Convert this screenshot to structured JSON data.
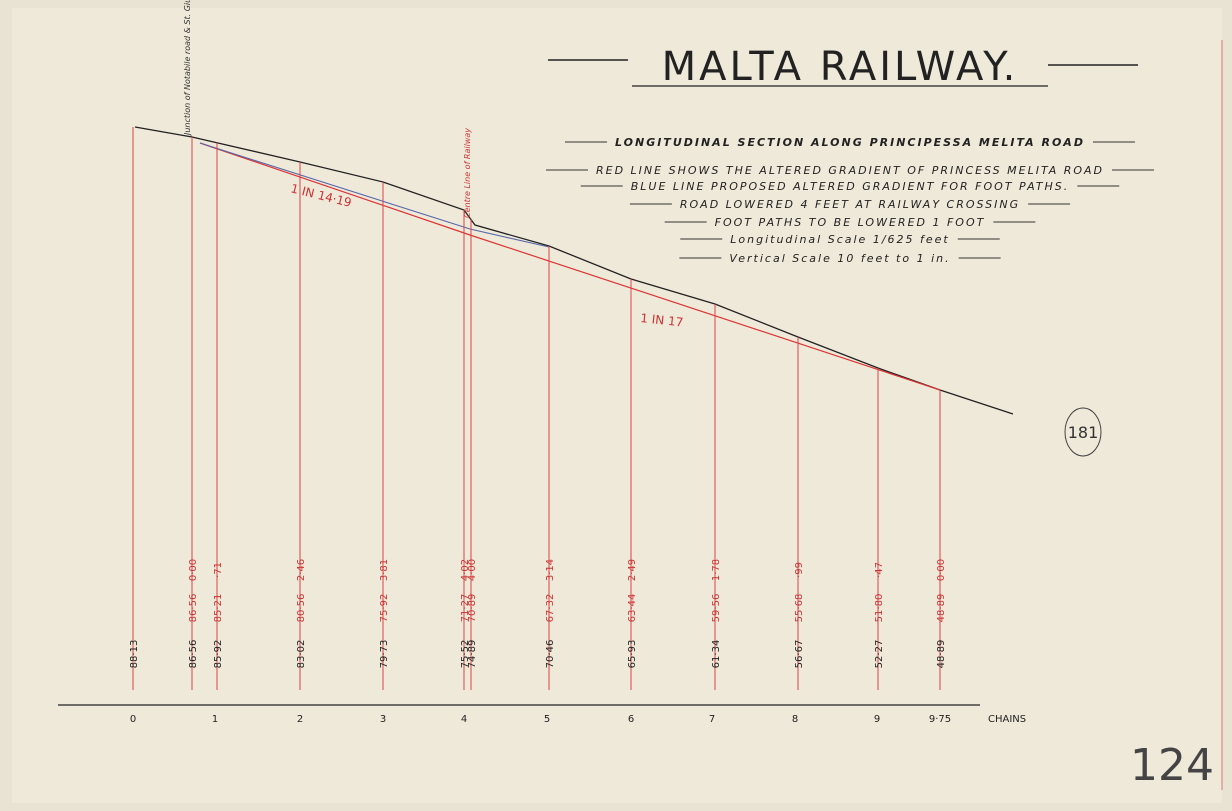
{
  "title": "MALTA RAILWAY.",
  "notes": [
    "LONGITUDINAL SECTION ALONG PRINCIPESSA MELITA ROAD",
    "RED LINE SHOWS THE ALTERED GRADIENT OF PRINCESS MELITA ROAD",
    "BLUE LINE PROPOSED ALTERED GRADIENT FOR FOOT PATHS.",
    "ROAD LOWERED 4 FEET AT RAILWAY CROSSING",
    "FOOT PATHS TO BE LOWERED 1 FOOT",
    "Longitudinal Scale 1/625 feet",
    "Vertical Scale 10 feet to 1 in."
  ],
  "gradients": [
    "1 IN 14·19",
    "1 IN 17"
  ],
  "annotations": {
    "junction": "Junction of Notabile road & St. Giuseppe Roads",
    "railway": "Centre Line of Railway"
  },
  "stations": [
    {
      "existing": "88·13"
    },
    {
      "existing": "86·56",
      "altered": "86·56",
      "cut": "0·00"
    },
    {
      "existing": "85·92",
      "altered": "85·21",
      "cut": "·71"
    },
    {
      "existing": "83·02",
      "altered": "80·56",
      "cut": "2·46"
    },
    {
      "existing": "79·73",
      "altered": "75·92",
      "cut": "3·81"
    },
    {
      "existing": "75·52",
      "altered": "71·27",
      "cut": "4·02"
    },
    {
      "existing": "74·89",
      "altered": "70·89",
      "cut": "4·00"
    },
    {
      "existing": "70·46",
      "altered": "67·32",
      "cut": "3·14"
    },
    {
      "existing": "65·93",
      "altered": "63·44",
      "cut": "2·49"
    },
    {
      "existing": "61·34",
      "altered": "59·56",
      "cut": "1·78"
    },
    {
      "existing": "56·67",
      "altered": "55·68",
      "cut": "·99"
    },
    {
      "existing": "52·27",
      "altered": "51·80",
      "cut": "·47"
    },
    {
      "existing": "48·89",
      "altered": "48·89",
      "cut": "0·00"
    }
  ],
  "chains": [
    "0",
    "1",
    "2",
    "3",
    "4",
    "5",
    "6",
    "7",
    "8",
    "9",
    "9·75"
  ],
  "chains_unit": "CHAINS",
  "stamps": [
    "181",
    "124"
  ]
}
